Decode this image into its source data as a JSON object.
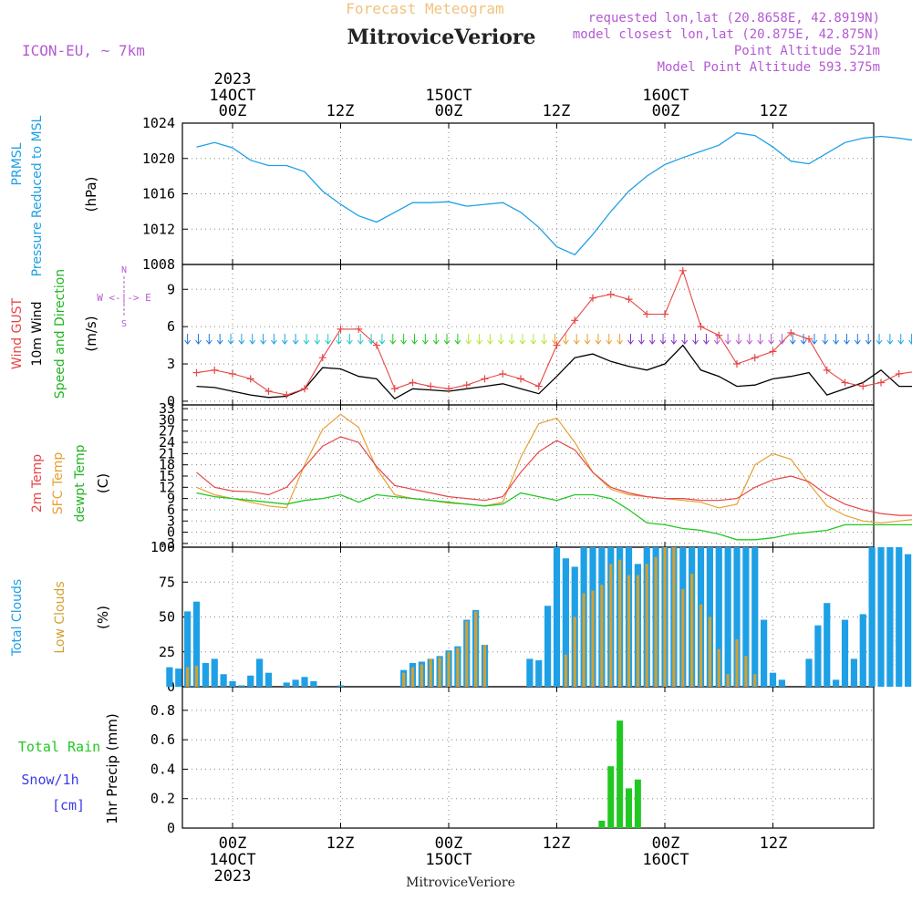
{
  "header": {
    "top_title": "Forecast Meteogram",
    "station": "MitroviceVeriore",
    "model": "ICON-EU, ~ 7km",
    "requested": "requested lon,lat (20.8658E, 42.8919N)",
    "closest": "model closest lon,lat (20.875E, 42.875N)",
    "point_alt": "Point Altitude 521m",
    "model_alt": "Model Point Altitude 593.375m",
    "watermark": "by Angel",
    "footer_station": "MitroviceVeriore"
  },
  "time_axis": {
    "top_year": "2023",
    "top_days": [
      "14OCT",
      "15OCT",
      "16OCT"
    ],
    "top_hours": [
      "00Z",
      "12Z",
      "00Z",
      "12Z",
      "00Z",
      "12Z"
    ],
    "bottom_hours": [
      "00Z",
      "12Z",
      "00Z",
      "12Z",
      "00Z",
      "12Z"
    ],
    "bottom_days": [
      "14OCT",
      "15OCT",
      "16OCT"
    ],
    "bottom_year": "2023"
  },
  "colors": {
    "pressure": "#1ea0e6",
    "gust": "#e64646",
    "wind": "#000000",
    "wind_dir": "#22b422",
    "t2m": "#e64646",
    "sfc": "#e6a032",
    "dewpt": "#22c822",
    "total_clouds": "#1ea0e6",
    "low_clouds": "#d2a032",
    "rain": "#22c822",
    "snow": "#3c3ce6",
    "header_purple": "#b45ad2",
    "header_orange": "#f0c37d"
  },
  "panel_labels": {
    "pressure": {
      "line1": "PRMSL",
      "line2": "Pressure Reduced to MSL",
      "unit": "(hPa)"
    },
    "wind": {
      "gust": "Wind GUST",
      "wind": "10m Wind",
      "dir": "Speed and Direction",
      "unit": "(m/s)",
      "compass_ew": "W <-|-> E",
      "compass_n": "N",
      "compass_s": "S"
    },
    "temp": {
      "t2m": "2m Temp",
      "sfc": "SFC Temp",
      "dewpt": "dewpt Temp",
      "unit": "(C)"
    },
    "clouds": {
      "total": "Total Clouds",
      "low": "Low Clouds",
      "unit": "(%)"
    },
    "precip": {
      "rain": "Total Rain",
      "snow": "Snow/1h",
      "snow_unit": "[cm]",
      "axis": "1hr Precip (mm)"
    }
  },
  "chart_data": [
    {
      "type": "line",
      "title": "PRMSL Pressure Reduced to MSL",
      "ylabel": "(hPa)",
      "ylim": [
        1008,
        1024
      ],
      "yticks": [
        "1008",
        "1012",
        "1016",
        "1020",
        "1024"
      ],
      "x_hours": [
        -4,
        -2,
        0,
        2,
        4,
        6,
        8,
        10,
        12,
        14,
        16,
        18,
        20,
        22,
        24,
        26,
        28,
        30,
        32,
        34,
        36,
        38,
        40,
        42,
        44,
        46,
        48,
        50,
        52,
        54,
        56,
        58,
        60,
        62,
        64,
        66,
        68,
        70,
        72,
        74,
        76
      ],
      "series": [
        {
          "name": "PRMSL",
          "values": [
            1021.3,
            1021.8,
            1021.2,
            1019.8,
            1019.2,
            1019.2,
            1018.5,
            1016.3,
            1014.8,
            1013.5,
            1012.8,
            1013.9,
            1015.0,
            1015.0,
            1015.1,
            1014.6,
            1014.8,
            1015.0,
            1013.9,
            1012.2,
            1010.0,
            1009.1,
            1011.4,
            1014.0,
            1016.3,
            1018.0,
            1019.3,
            1020.1,
            1020.8,
            1021.5,
            1022.9,
            1022.6,
            1021.3,
            1019.7,
            1019.4,
            1020.6,
            1021.8,
            1022.3,
            1022.5,
            1022.3,
            1022.0
          ]
        }
      ]
    },
    {
      "type": "line",
      "title": "Wind GUST / 10m Wind Speed and Direction",
      "ylabel": "(m/s)",
      "ylim": [
        -0.3,
        11
      ],
      "yticks": [
        "0",
        "3",
        "6",
        "9"
      ],
      "x_hours": [
        -4,
        -2,
        0,
        2,
        4,
        6,
        8,
        10,
        12,
        14,
        16,
        18,
        20,
        22,
        24,
        26,
        28,
        30,
        32,
        34,
        36,
        38,
        40,
        42,
        44,
        46,
        48,
        50,
        52,
        54,
        56,
        58,
        60,
        62,
        64,
        66,
        68,
        70,
        72,
        74,
        76
      ],
      "series": [
        {
          "name": "Wind GUST",
          "values": [
            2.3,
            2.5,
            2.2,
            1.8,
            0.8,
            0.5,
            1.0,
            3.5,
            5.8,
            5.8,
            4.5,
            1.0,
            1.5,
            1.2,
            1.0,
            1.3,
            1.8,
            2.2,
            1.8,
            1.2,
            4.5,
            6.5,
            8.3,
            8.6,
            8.2,
            7.0,
            7.0,
            10.5,
            6.0,
            5.3,
            3.0,
            3.5,
            4.0,
            5.5,
            5.0,
            2.5,
            1.5,
            1.2,
            1.5,
            2.2,
            2.4
          ]
        },
        {
          "name": "10m Wind",
          "values": [
            1.2,
            1.1,
            0.8,
            0.5,
            0.3,
            0.4,
            1.0,
            2.7,
            2.6,
            2.0,
            1.8,
            0.2,
            1.0,
            0.9,
            0.8,
            1.0,
            1.2,
            1.4,
            1.0,
            0.6,
            2.0,
            3.5,
            3.8,
            3.2,
            2.8,
            2.5,
            3.0,
            4.5,
            2.5,
            2.0,
            1.2,
            1.3,
            1.8,
            2.0,
            2.3,
            0.5,
            1.0,
            1.5,
            2.5,
            1.2,
            1.2
          ]
        }
      ]
    },
    {
      "type": "line",
      "title": "2m Temp / SFC Temp / dewpt Temp",
      "ylabel": "(C)",
      "ylim": [
        -4,
        34
      ],
      "yticks": [
        "-3",
        "0",
        "3",
        "6",
        "9",
        "12",
        "15",
        "18",
        "21",
        "24",
        "27",
        "30",
        "33"
      ],
      "x_hours": [
        -4,
        -2,
        0,
        2,
        4,
        6,
        8,
        10,
        12,
        14,
        16,
        18,
        20,
        22,
        24,
        26,
        28,
        30,
        32,
        34,
        36,
        38,
        40,
        42,
        44,
        46,
        48,
        50,
        52,
        54,
        56,
        58,
        60,
        62,
        64,
        66,
        68,
        70,
        72,
        74,
        76
      ],
      "series": [
        {
          "name": "2m Temp",
          "values": [
            16.0,
            12.0,
            11.0,
            10.8,
            10.0,
            12.0,
            17.5,
            23.0,
            25.5,
            24.0,
            17.5,
            12.5,
            11.5,
            10.5,
            9.5,
            9.0,
            8.5,
            9.5,
            16.0,
            21.5,
            24.5,
            22.0,
            16.0,
            12.0,
            10.5,
            9.5,
            9.0,
            9.0,
            8.5,
            8.5,
            9.0,
            12.0,
            14.0,
            15.0,
            13.5,
            10.0,
            7.5,
            6.0,
            5.0,
            4.5,
            4.5
          ]
        },
        {
          "name": "SFC Temp",
          "values": [
            12.0,
            10.0,
            9.0,
            8.0,
            7.0,
            6.5,
            18.0,
            27.5,
            31.5,
            28.0,
            17.0,
            10.0,
            9.0,
            8.5,
            7.8,
            7.5,
            7.0,
            8.0,
            20.0,
            29.0,
            30.5,
            24.0,
            16.0,
            11.5,
            10.0,
            9.5,
            9.0,
            8.5,
            8.0,
            6.5,
            7.5,
            18.0,
            21.0,
            19.5,
            13.0,
            7.0,
            4.5,
            3.0,
            2.5,
            3.0,
            3.5
          ]
        },
        {
          "name": "dewpt Temp",
          "values": [
            10.5,
            9.5,
            9.0,
            8.5,
            8.0,
            7.5,
            8.5,
            9.0,
            10.0,
            8.0,
            10.0,
            9.5,
            9.0,
            8.5,
            8.0,
            7.5,
            7.0,
            7.5,
            10.5,
            9.5,
            8.5,
            10.0,
            10.0,
            9.0,
            6.0,
            2.5,
            2.0,
            1.0,
            0.5,
            -0.5,
            -2.0,
            -2.0,
            -1.5,
            -0.5,
            0.0,
            0.5,
            2.0,
            2.0,
            2.0,
            2.0,
            2.0
          ]
        }
      ]
    },
    {
      "type": "bar",
      "title": "Total Clouds / Low Clouds",
      "ylabel": "(%)",
      "ylim": [
        0,
        100
      ],
      "yticks": [
        "0",
        "25",
        "50",
        "75",
        "100"
      ],
      "x_hours": [
        -7,
        -6,
        -5,
        -4,
        -3,
        -2,
        -1,
        0,
        1,
        2,
        3,
        4,
        5,
        6,
        7,
        8,
        9,
        10,
        11,
        12,
        13,
        14,
        15,
        16,
        17,
        18,
        19,
        20,
        21,
        22,
        23,
        24,
        25,
        26,
        27,
        28,
        29,
        30,
        31,
        32,
        33,
        34,
        35,
        36,
        37,
        38,
        39,
        40,
        41,
        42,
        43,
        44,
        45,
        46,
        47,
        48,
        49,
        50,
        51,
        52,
        53,
        54,
        55,
        56,
        57,
        58,
        59,
        60,
        61,
        62,
        63,
        64,
        65,
        66,
        67,
        68,
        69,
        70,
        71,
        72,
        73,
        74,
        75,
        76,
        77
      ],
      "series": [
        {
          "name": "Total Clouds",
          "values": [
            14,
            13,
            54,
            61,
            17,
            20,
            9,
            4,
            1,
            8,
            20,
            10,
            0,
            3,
            5,
            7,
            4,
            0,
            0,
            1,
            0,
            0,
            0,
            0,
            0,
            0,
            12,
            17,
            18,
            20,
            22,
            26,
            29,
            48,
            55,
            30,
            0,
            0,
            0,
            0,
            20,
            19,
            58,
            100,
            92,
            86,
            100,
            100,
            100,
            100,
            100,
            100,
            88,
            100,
            100,
            100,
            100,
            100,
            100,
            100,
            100,
            100,
            100,
            100,
            100,
            100,
            48,
            10,
            5,
            0,
            0,
            20,
            44,
            60,
            5,
            48,
            20,
            52,
            100,
            100,
            100,
            100,
            95,
            100,
            100
          ]
        },
        {
          "name": "Low Clouds",
          "values": [
            0,
            0,
            14,
            15,
            0,
            0,
            0,
            0,
            0,
            0,
            0,
            0,
            0,
            0,
            0,
            0,
            0,
            0,
            0,
            0,
            0,
            0,
            0,
            0,
            0,
            0,
            10,
            14,
            16,
            20,
            21,
            25,
            28,
            47,
            54,
            30,
            0,
            0,
            0,
            0,
            0,
            0,
            0,
            0,
            23,
            50,
            67,
            69,
            73,
            88,
            91,
            80,
            80,
            88,
            93,
            100,
            100,
            70,
            81,
            59,
            50,
            27,
            9,
            34,
            22,
            9,
            0,
            0,
            0,
            0,
            0,
            0,
            0,
            0,
            0,
            0,
            0,
            0,
            0,
            0,
            0,
            0,
            0,
            0,
            0
          ]
        }
      ]
    },
    {
      "type": "bar",
      "title": "1hr Precip (mm)",
      "ylabel": "1hr Precip (mm)",
      "ylim": [
        0,
        0.96
      ],
      "yticks": [
        "0",
        "0.2",
        "0.4",
        "0.6",
        "0.8"
      ],
      "x_hours": [
        41,
        42,
        43,
        44,
        45
      ],
      "series": [
        {
          "name": "Total Rain",
          "values": [
            0.05,
            0.42,
            0.73,
            0.27,
            0.33
          ]
        }
      ]
    }
  ]
}
